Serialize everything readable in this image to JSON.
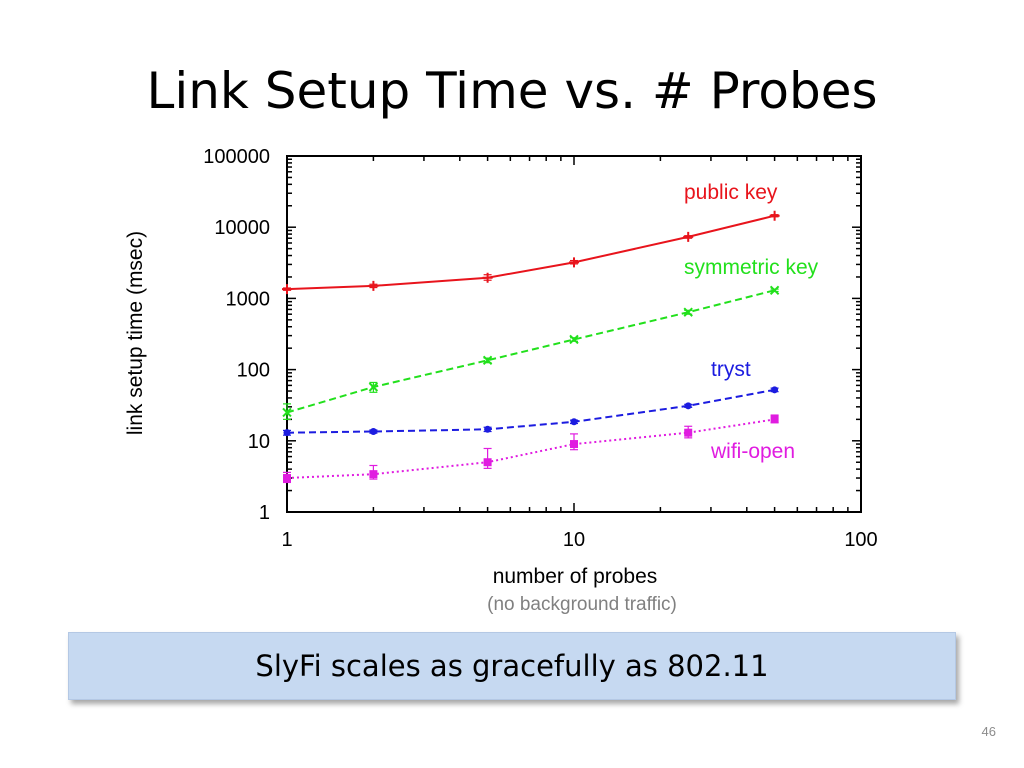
{
  "slide": {
    "title": "Link Setup Time vs. # Probes",
    "callout": "SlyFi scales as gracefully as 802.11",
    "page_number": "46"
  },
  "chart_data": {
    "type": "line",
    "title": "",
    "xlabel": "number of probes",
    "xlabel_note": "(no background traffic)",
    "ylabel": "link setup time (msec)",
    "x_scale": "log",
    "y_scale": "log",
    "xlim": [
      1,
      100
    ],
    "ylim": [
      1,
      100000
    ],
    "x_ticks": [
      {
        "value": 1,
        "label": "1"
      },
      {
        "value": 10,
        "label": "10"
      },
      {
        "value": 100,
        "label": "100"
      }
    ],
    "y_ticks": [
      {
        "value": 1,
        "label": "1"
      },
      {
        "value": 10,
        "label": "10"
      },
      {
        "value": 100,
        "label": "100"
      },
      {
        "value": 1000,
        "label": "1000"
      },
      {
        "value": 10000,
        "label": "10000"
      },
      {
        "value": 100000,
        "label": "100000"
      }
    ],
    "grid": false,
    "legend": "inline labels",
    "x": [
      1,
      2,
      5,
      10,
      25,
      50
    ],
    "series": [
      {
        "name": "public key",
        "color": "#e8141c",
        "dash": "solid",
        "marker": "plus",
        "values": [
          1350,
          1500,
          1950,
          3200,
          7300,
          14500
        ],
        "err_low": [
          1300,
          1420,
          1800,
          3050,
          7000,
          14000
        ],
        "err_high": [
          1400,
          1580,
          2150,
          3400,
          7600,
          15000
        ]
      },
      {
        "name": "symmetric key",
        "color": "#22e01c",
        "dash": "dashed",
        "marker": "cross",
        "values": [
          25,
          57,
          135,
          265,
          640,
          1300
        ],
        "err_low": [
          20,
          48,
          125,
          250,
          600,
          1250
        ],
        "err_high": [
          33,
          66,
          145,
          280,
          680,
          1350
        ]
      },
      {
        "name": "tryst",
        "color": "#1c1ce0",
        "dash": "dashed",
        "marker": "dot",
        "values": [
          13,
          13.5,
          14.5,
          18.5,
          31,
          52
        ],
        "err_low": [
          12,
          12.8,
          13.5,
          17.5,
          29.5,
          49
        ],
        "err_high": [
          14,
          14.2,
          15.5,
          19.5,
          32.5,
          55
        ]
      },
      {
        "name": "wifi-open",
        "color": "#e01ce0",
        "dash": "dotted",
        "marker": "square",
        "values": [
          3,
          3.4,
          5,
          9,
          13,
          20
        ],
        "err_low": [
          2.6,
          2.9,
          4.1,
          7.5,
          11,
          18
        ],
        "err_high": [
          3.6,
          4.5,
          7.8,
          12.5,
          16,
          23
        ]
      }
    ]
  }
}
